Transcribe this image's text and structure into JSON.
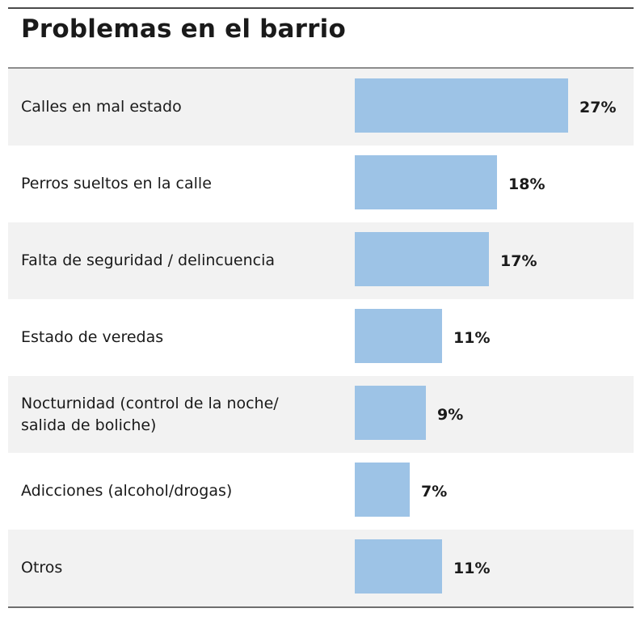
{
  "chart_data": {
    "type": "bar",
    "orientation": "horizontal",
    "title": "Problemas en el barrio",
    "xlabel": "",
    "ylabel": "",
    "unit": "%",
    "xlim": [
      0,
      27
    ],
    "categories": [
      "Calles  en mal estado",
      "Perros sueltos en la calle",
      "Falta de seguridad / delincuencia",
      "Estado de veredas",
      "Nocturnidad (control de la noche/\nsalida de boliche)",
      "Adicciones (alcohol/drogas)",
      "Otros"
    ],
    "values": [
      27,
      18,
      17,
      11,
      9,
      7,
      11
    ],
    "data_labels": [
      "27%",
      "18%",
      "17%",
      "11%",
      "9%",
      "7%",
      "11%"
    ],
    "bar_color": "#9dc3e6",
    "row_colors": [
      "#f2f2f2",
      "#ffffff"
    ]
  }
}
